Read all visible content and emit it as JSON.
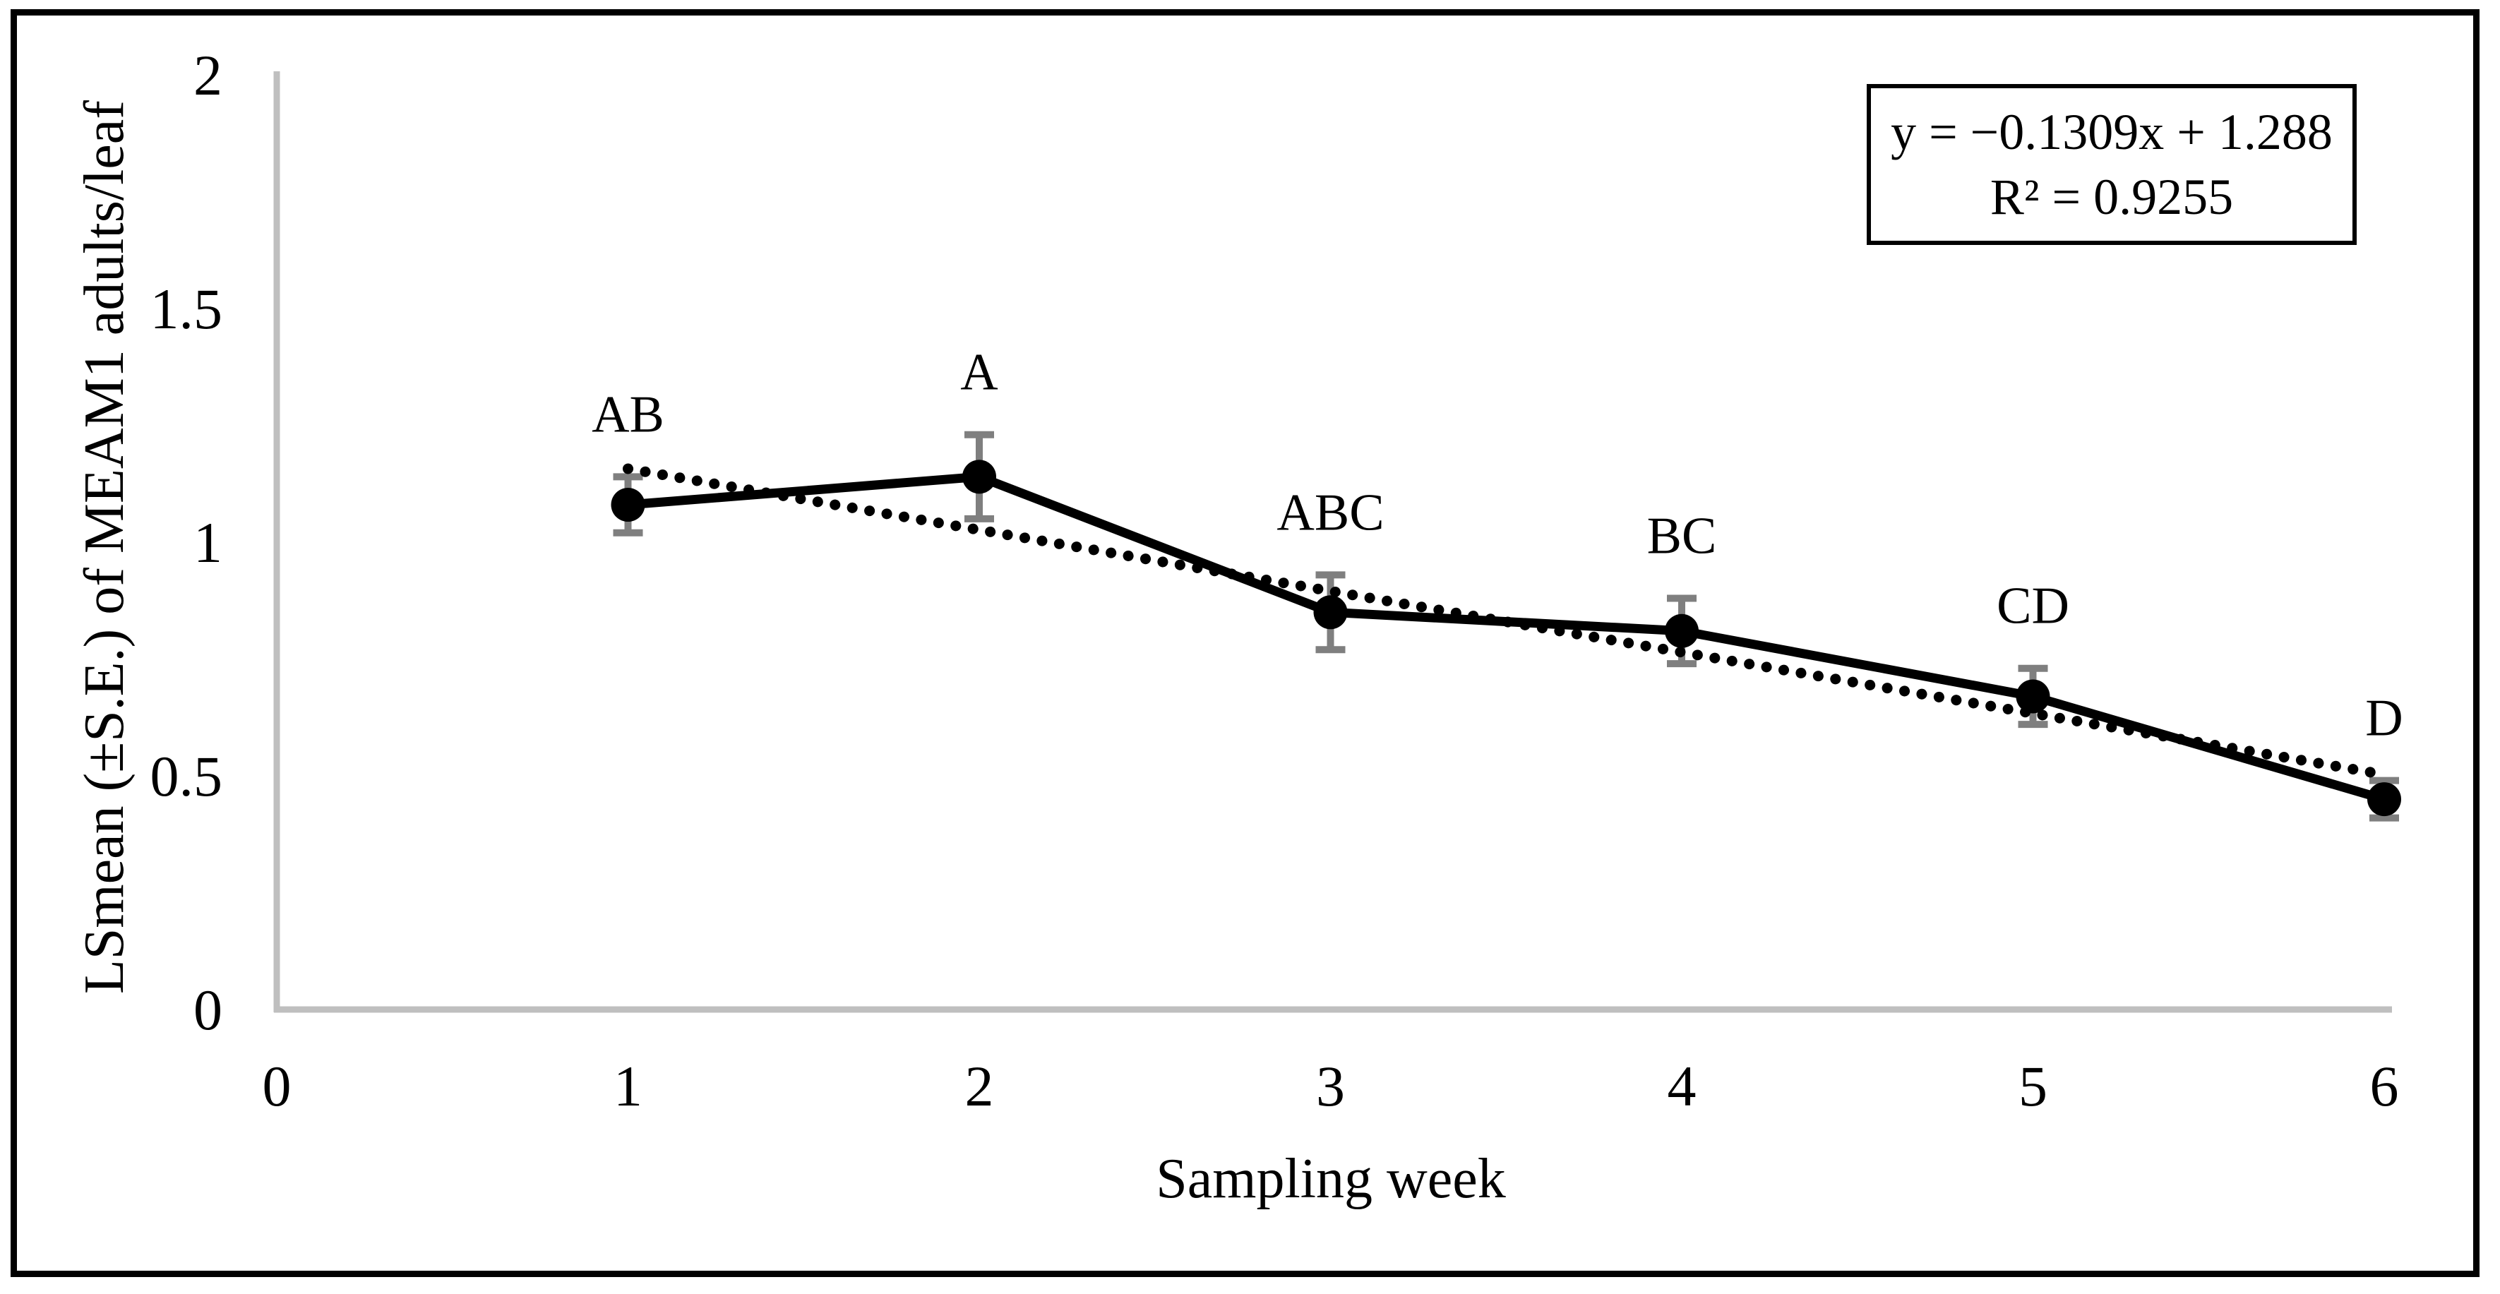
{
  "figure": {
    "equation_box": {
      "equation_label": "y = −0.1309x + 1.288",
      "r2_label": "R² = 0.9255"
    }
  },
  "chart_data": {
    "type": "line",
    "title": "",
    "xlabel": "Sampling week",
    "ylabel": "LSmean (±S.E.) of MEAM1 adults/leaf",
    "x": [
      1,
      2,
      3,
      4,
      5,
      6
    ],
    "series": [
      {
        "name": "LSmean (±S.E.) of MEAM1 adults/leaf",
        "values": [
          1.08,
          1.14,
          0.85,
          0.81,
          0.67,
          0.45
        ],
        "se": [
          0.06,
          0.09,
          0.08,
          0.07,
          0.06,
          0.04
        ],
        "point_labels": [
          "AB",
          "A",
          "ABC",
          "BC",
          "CD",
          "D"
        ],
        "marker": "filled-circle",
        "line_style": "solid"
      }
    ],
    "trendline": {
      "type": "linear",
      "slope": -0.1309,
      "intercept": 1.288,
      "r_squared": 0.9255,
      "x_start": 1,
      "x_end": 6,
      "style": "dotted"
    },
    "xlim": [
      0,
      6
    ],
    "ylim": [
      0,
      2
    ],
    "xtick_labels": [
      "0",
      "1",
      "2",
      "3",
      "4",
      "5",
      "6"
    ],
    "ytick_labels": [
      "0",
      "0.5",
      "1",
      "1.5",
      "2"
    ],
    "grid": false,
    "legend": "none",
    "colors": {
      "series": "#000000",
      "trendline": "#000000",
      "error_bars": "#7F7F7F",
      "axis_lines": "#BFBFBF",
      "text": "#000000",
      "background": "#FFFFFF"
    }
  }
}
